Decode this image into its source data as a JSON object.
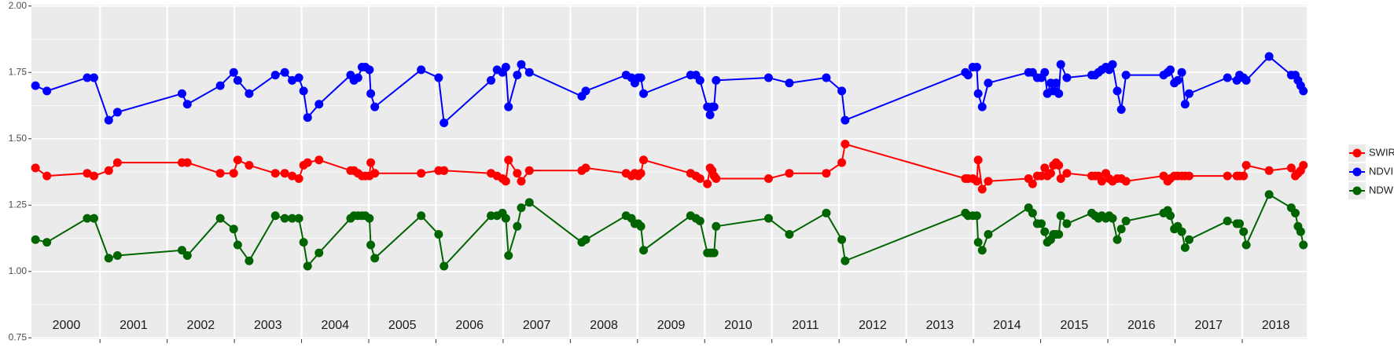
{
  "chart_data": {
    "type": "line",
    "x": [
      2000.04,
      2000.21,
      2000.81,
      2000.91,
      2001.13,
      2001.26,
      2002.22,
      2002.3,
      2002.79,
      2002.99,
      2003.05,
      2003.22,
      2003.61,
      2003.75,
      2003.86,
      2003.96,
      2004.03,
      2004.09,
      2004.26,
      2004.73,
      2004.78,
      2004.84,
      2004.9,
      2004.95,
      2005.01,
      2005.03,
      2005.09,
      2005.78,
      2006.04,
      2006.12,
      2006.82,
      2006.91,
      2006.99,
      2007.04,
      2007.08,
      2007.21,
      2007.27,
      2007.39,
      2008.17,
      2008.23,
      2008.83,
      2008.91,
      2008.96,
      2009.01,
      2009.05,
      2009.09,
      2009.79,
      2009.87,
      2009.93,
      2010.04,
      2010.08,
      2010.11,
      2010.14,
      2010.17,
      2010.95,
      2011.26,
      2011.81,
      2012.04,
      2012.09,
      2013.88,
      2013.92,
      2013.99,
      2014.05,
      2014.07,
      2014.13,
      2014.22,
      2014.82,
      2014.88,
      2014.95,
      2015.01,
      2015.06,
      2015.1,
      2015.15,
      2015.19,
      2015.23,
      2015.27,
      2015.3,
      2015.39,
      2015.76,
      2015.81,
      2015.86,
      2015.91,
      2015.97,
      2016.02,
      2016.07,
      2016.14,
      2016.2,
      2016.27,
      2016.83,
      2016.89,
      2016.93,
      2016.99,
      2017.04,
      2017.1,
      2017.15,
      2017.21,
      2017.78,
      2017.92,
      2017.96,
      2018.02,
      2018.06,
      2018.4,
      2018.73,
      2018.79,
      2018.83,
      2018.87,
      2018.91
    ],
    "series": [
      {
        "name": "SWIR",
        "color": "#ff0000",
        "values": [
          1.39,
          1.36,
          1.37,
          1.36,
          1.38,
          1.41,
          1.41,
          1.41,
          1.37,
          1.37,
          1.42,
          1.4,
          1.37,
          1.37,
          1.36,
          1.35,
          1.4,
          1.41,
          1.42,
          1.38,
          1.38,
          1.37,
          1.36,
          1.36,
          1.36,
          1.41,
          1.37,
          1.37,
          1.38,
          1.38,
          1.37,
          1.36,
          1.35,
          1.34,
          1.42,
          1.37,
          1.34,
          1.38,
          1.38,
          1.39,
          1.37,
          1.36,
          1.37,
          1.36,
          1.37,
          1.42,
          1.37,
          1.36,
          1.35,
          1.33,
          1.39,
          1.38,
          1.36,
          1.35,
          1.35,
          1.37,
          1.37,
          1.41,
          1.48,
          1.35,
          1.35,
          1.35,
          1.34,
          1.42,
          1.31,
          1.34,
          1.35,
          1.33,
          1.36,
          1.36,
          1.39,
          1.36,
          1.37,
          1.4,
          1.41,
          1.4,
          1.35,
          1.37,
          1.36,
          1.36,
          1.36,
          1.34,
          1.37,
          1.35,
          1.34,
          1.35,
          1.35,
          1.34,
          1.36,
          1.34,
          1.35,
          1.36,
          1.36,
          1.36,
          1.36,
          1.36,
          1.36,
          1.36,
          1.36,
          1.36,
          1.4,
          1.38,
          1.39,
          1.36,
          1.37,
          1.38,
          1.4
        ]
      },
      {
        "name": "NDVI",
        "color": "#0000ff",
        "values": [
          1.7,
          1.68,
          1.73,
          1.73,
          1.57,
          1.6,
          1.67,
          1.63,
          1.7,
          1.75,
          1.72,
          1.67,
          1.74,
          1.75,
          1.72,
          1.73,
          1.68,
          1.58,
          1.63,
          1.74,
          1.72,
          1.73,
          1.77,
          1.77,
          1.76,
          1.67,
          1.62,
          1.76,
          1.73,
          1.56,
          1.72,
          1.76,
          1.75,
          1.77,
          1.62,
          1.74,
          1.78,
          1.75,
          1.66,
          1.68,
          1.74,
          1.73,
          1.71,
          1.73,
          1.73,
          1.67,
          1.74,
          1.74,
          1.72,
          1.62,
          1.59,
          1.62,
          1.62,
          1.72,
          1.73,
          1.71,
          1.73,
          1.68,
          1.57,
          1.75,
          1.74,
          1.77,
          1.77,
          1.67,
          1.62,
          1.71,
          1.75,
          1.75,
          1.73,
          1.73,
          1.75,
          1.67,
          1.71,
          1.68,
          1.71,
          1.67,
          1.78,
          1.73,
          1.74,
          1.74,
          1.75,
          1.76,
          1.77,
          1.76,
          1.78,
          1.68,
          1.61,
          1.74,
          1.74,
          1.75,
          1.76,
          1.71,
          1.72,
          1.75,
          1.63,
          1.67,
          1.73,
          1.72,
          1.74,
          1.73,
          1.72,
          1.81,
          1.74,
          1.74,
          1.72,
          1.7,
          1.68
        ]
      },
      {
        "name": "NDWI",
        "color": "#006400",
        "values": [
          1.12,
          1.11,
          1.2,
          1.2,
          1.05,
          1.06,
          1.08,
          1.06,
          1.2,
          1.16,
          1.1,
          1.04,
          1.21,
          1.2,
          1.2,
          1.2,
          1.11,
          1.02,
          1.07,
          1.2,
          1.21,
          1.21,
          1.21,
          1.21,
          1.2,
          1.1,
          1.05,
          1.21,
          1.14,
          1.02,
          1.21,
          1.21,
          1.22,
          1.2,
          1.06,
          1.17,
          1.24,
          1.26,
          1.11,
          1.12,
          1.21,
          1.2,
          1.18,
          1.18,
          1.17,
          1.08,
          1.21,
          1.2,
          1.19,
          1.07,
          1.07,
          1.07,
          1.07,
          1.17,
          1.2,
          1.14,
          1.22,
          1.12,
          1.04,
          1.22,
          1.21,
          1.21,
          1.21,
          1.11,
          1.08,
          1.14,
          1.24,
          1.22,
          1.18,
          1.18,
          1.15,
          1.11,
          1.12,
          1.14,
          1.14,
          1.14,
          1.21,
          1.18,
          1.22,
          1.21,
          1.2,
          1.21,
          1.2,
          1.21,
          1.2,
          1.12,
          1.16,
          1.19,
          1.22,
          1.23,
          1.21,
          1.16,
          1.17,
          1.15,
          1.09,
          1.12,
          1.19,
          1.18,
          1.18,
          1.15,
          1.1,
          1.29,
          1.24,
          1.22,
          1.17,
          1.15,
          1.1
        ]
      }
    ],
    "xlim": [
      1999.98,
      2018.96
    ],
    "ylim": [
      0.745,
      2.005
    ],
    "yticks": [
      {
        "value": 0.75,
        "label": "0.75"
      },
      {
        "value": 1,
        "label": "1.00"
      },
      {
        "value": 1.25,
        "label": "1.25"
      },
      {
        "value": 1.5,
        "label": "1.50"
      },
      {
        "value": 1.75,
        "label": "1.75"
      },
      {
        "value": 2,
        "label": "2.00"
      }
    ],
    "y_minor_grid": [
      0.875,
      1.125,
      1.375,
      1.625,
      1.875
    ],
    "xticks": [
      {
        "value": 2000.5,
        "label": "2000"
      },
      {
        "value": 2001.5,
        "label": "2001"
      },
      {
        "value": 2002.5,
        "label": "2002"
      },
      {
        "value": 2003.5,
        "label": "2003"
      },
      {
        "value": 2004.5,
        "label": "2004"
      },
      {
        "value": 2005.5,
        "label": "2005"
      },
      {
        "value": 2006.5,
        "label": "2006"
      },
      {
        "value": 2007.5,
        "label": "2007"
      },
      {
        "value": 2008.5,
        "label": "2008"
      },
      {
        "value": 2009.5,
        "label": "2009"
      },
      {
        "value": 2010.5,
        "label": "2010"
      },
      {
        "value": 2011.5,
        "label": "2011"
      },
      {
        "value": 2012.5,
        "label": "2012"
      },
      {
        "value": 2013.5,
        "label": "2013"
      },
      {
        "value": 2014.5,
        "label": "2014"
      },
      {
        "value": 2015.5,
        "label": "2015"
      },
      {
        "value": 2016.5,
        "label": "2016"
      },
      {
        "value": 2017.5,
        "label": "2017"
      },
      {
        "value": 2018.5,
        "label": "2018"
      }
    ],
    "year_lines": [
      2001,
      2002,
      2003,
      2004,
      2005,
      2006,
      2007,
      2008,
      2009,
      2010,
      2011,
      2012,
      2013,
      2014,
      2015,
      2016,
      2017,
      2018
    ],
    "grid": true,
    "legend": "right"
  }
}
